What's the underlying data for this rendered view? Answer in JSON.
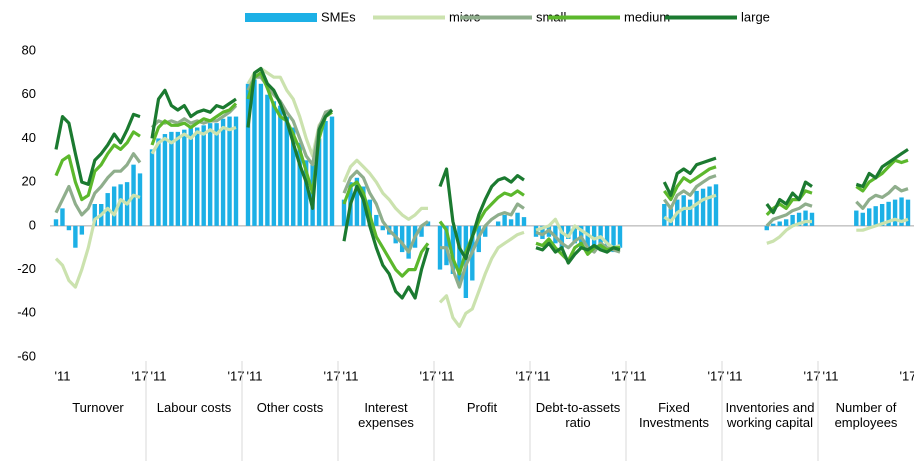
{
  "chart_data": {
    "type": "bar-line",
    "ylim": [
      -60,
      80
    ],
    "yticks": [
      -60,
      -40,
      -20,
      0,
      20,
      40,
      60,
      80
    ],
    "legend": [
      {
        "name": "SMEs",
        "color": "#1cb0e6",
        "type": "bar"
      },
      {
        "name": "micro",
        "color": "#cbe2ae",
        "type": "line"
      },
      {
        "name": "small",
        "color": "#8fae8c",
        "type": "line"
      },
      {
        "name": "medium",
        "color": "#5cb82c",
        "type": "line"
      },
      {
        "name": "large",
        "color": "#1b7a30",
        "type": "line"
      }
    ],
    "panels": [
      {
        "label": "Turnover",
        "categories": [
          null,
          "'11",
          null,
          null,
          null,
          null,
          null,
          null,
          null,
          null,
          null,
          null,
          null,
          "'17"
        ],
        "series": [
          {
            "values": [
              3,
              8,
              -2,
              -10,
              -4,
              0,
              10,
              10,
              15,
              18,
              19,
              20,
              28,
              24
            ]
          },
          {
            "values": [
              -15,
              -18,
              -25,
              -28,
              -20,
              -10,
              3,
              5,
              8,
              5,
              12,
              10,
              14,
              13
            ]
          },
          {
            "values": [
              6,
              12,
              18,
              10,
              5,
              8,
              15,
              18,
              22,
              25,
              25,
              28,
              33,
              29
            ]
          },
          {
            "values": [
              23,
              30,
              32,
              20,
              12,
              14,
              25,
              28,
              33,
              37,
              35,
              38,
              43,
              41
            ]
          },
          {
            "values": [
              35,
              50,
              47,
              33,
              20,
              19,
              30,
              33,
              37,
              42,
              38,
              44,
              51,
              50
            ]
          }
        ]
      },
      {
        "label": "Labour costs",
        "categories": [
          null,
          "'11",
          null,
          null,
          null,
          null,
          null,
          null,
          null,
          null,
          null,
          null,
          null,
          "'17"
        ],
        "series": [
          {
            "values": [
              35,
              40,
              42,
              43,
              43,
              44,
              45,
              45,
              46,
              47,
              47,
              49,
              50,
              50
            ]
          },
          {
            "values": [
              33,
              38,
              40,
              38,
              40,
              42,
              40,
              43,
              42,
              44,
              42,
              45,
              44,
              45
            ]
          },
          {
            "values": [
              45,
              48,
              47,
              48,
              47,
              49,
              47,
              48,
              47,
              48,
              48,
              50,
              52,
              55
            ]
          },
          {
            "values": [
              37,
              45,
              48,
              46,
              46,
              47,
              45,
              47,
              49,
              48,
              50,
              52,
              53,
              56
            ]
          },
          {
            "values": [
              40,
              58,
              62,
              55,
              53,
              55,
              50,
              52,
              53,
              52,
              55,
              54,
              56,
              58
            ]
          }
        ]
      },
      {
        "label": "Other costs",
        "categories": [
          null,
          "'11",
          null,
          null,
          null,
          null,
          null,
          null,
          null,
          null,
          null,
          null,
          null,
          "'17"
        ],
        "series": [
          {
            "values": [
              65,
              67,
              65,
              60,
              57,
              55,
              50,
              45,
              38,
              30,
              28,
              40,
              48,
              50
            ]
          },
          {
            "values": [
              65,
              70,
              72,
              70,
              68,
              68,
              62,
              58,
              50,
              40,
              32,
              46,
              50,
              52
            ]
          },
          {
            "values": [
              62,
              68,
              68,
              64,
              60,
              57,
              52,
              48,
              40,
              32,
              28,
              45,
              52,
              53
            ]
          },
          {
            "values": [
              58,
              68,
              70,
              63,
              55,
              50,
              48,
              42,
              35,
              25,
              15,
              40,
              50,
              52
            ]
          },
          {
            "values": [
              45,
              70,
              72,
              65,
              62,
              56,
              48,
              38,
              28,
              20,
              8,
              44,
              50,
              53
            ]
          }
        ]
      },
      {
        "label": "Interest expenses",
        "categories": [
          null,
          "'11",
          null,
          null,
          null,
          null,
          null,
          null,
          null,
          null,
          null,
          null,
          null,
          "'17"
        ],
        "series": [
          {
            "values": [
              12,
              20,
              22,
              18,
              12,
              5,
              -2,
              -4,
              -8,
              -12,
              -15,
              -10,
              -5,
              2
            ]
          },
          {
            "values": [
              20,
              27,
              30,
              27,
              24,
              20,
              15,
              12,
              8,
              5,
              3,
              5,
              8,
              8
            ]
          },
          {
            "values": [
              15,
              22,
              25,
              22,
              15,
              10,
              2,
              -2,
              -5,
              -8,
              -12,
              -5,
              0,
              2
            ]
          },
          {
            "values": [
              10,
              18,
              20,
              15,
              5,
              -5,
              -10,
              -15,
              -20,
              -23,
              -20,
              -20,
              -12,
              -8
            ]
          },
          {
            "values": [
              -7,
              10,
              18,
              12,
              0,
              -10,
              -18,
              -22,
              -30,
              -33,
              -28,
              -33,
              -20,
              -10
            ]
          }
        ]
      },
      {
        "label": "Profit",
        "categories": [
          null,
          "'11",
          null,
          null,
          null,
          null,
          null,
          null,
          null,
          null,
          null,
          null,
          null,
          "'17"
        ],
        "series": [
          {
            "values": [
              -20,
              -18,
              -22,
              -27,
              -33,
              -25,
              -12,
              -5,
              0,
              2,
              5,
              3,
              6,
              4
            ]
          },
          {
            "values": [
              -35,
              -32,
              -42,
              -46,
              -40,
              -38,
              -30,
              -22,
              -15,
              -10,
              -8,
              -6,
              -4,
              -3
            ]
          },
          {
            "values": [
              -10,
              -10,
              -20,
              -28,
              -18,
              -12,
              -5,
              0,
              3,
              5,
              6,
              5,
              10,
              8
            ]
          },
          {
            "values": [
              2,
              -2,
              -15,
              -22,
              -12,
              -5,
              2,
              7,
              10,
              13,
              15,
              14,
              16,
              14
            ]
          },
          {
            "values": [
              18,
              26,
              2,
              -10,
              -15,
              -5,
              5,
              12,
              18,
              21,
              22,
              20,
              23,
              21
            ]
          }
        ]
      },
      {
        "label": "Debt-to-assets ratio",
        "categories": [
          null,
          "'11",
          null,
          null,
          null,
          null,
          null,
          null,
          null,
          null,
          null,
          null,
          null,
          "'17"
        ],
        "series": [
          {
            "values": [
              -5,
              -6,
              -5,
              -8,
              -10,
              -6,
              -8,
              -10,
              -12,
              -10,
              -11,
              -9,
              -12,
              -10
            ]
          },
          {
            "values": [
              -2,
              -1,
              0,
              3,
              -3,
              -5,
              0,
              -2,
              -4,
              -6,
              -5,
              -8,
              -10,
              -9
            ]
          },
          {
            "values": [
              -3,
              -4,
              -2,
              -5,
              -8,
              -10,
              -7,
              -5,
              -10,
              -12,
              -8,
              -10,
              -11,
              -12
            ]
          },
          {
            "values": [
              -8,
              -9,
              -6,
              -10,
              -13,
              -16,
              -10,
              -8,
              -13,
              -10,
              -9,
              -11,
              -10,
              -10
            ]
          },
          {
            "values": [
              -10,
              -11,
              -8,
              -12,
              -10,
              -17,
              -13,
              -10,
              -11,
              -9,
              -11,
              -12,
              -10,
              -11
            ]
          }
        ]
      },
      {
        "label": "Fixed Investments",
        "categories": [
          null,
          "'11",
          null,
          null,
          null,
          null,
          null,
          null,
          null,
          null,
          null,
          null,
          null,
          "'17"
        ],
        "series": [
          {
            "values": [
              null,
              null,
              null,
              null,
              null,
              10,
              8,
              12,
              14,
              12,
              16,
              17,
              18,
              19
            ]
          },
          {
            "values": [
              null,
              null,
              null,
              null,
              null,
              4,
              2,
              6,
              8,
              8,
              10,
              12,
              13,
              14
            ]
          },
          {
            "values": [
              null,
              null,
              null,
              null,
              null,
              12,
              8,
              14,
              16,
              14,
              18,
              20,
              22,
              23
            ]
          },
          {
            "values": [
              null,
              null,
              null,
              null,
              null,
              16,
              12,
              18,
              22,
              20,
              22,
              24,
              26,
              27
            ]
          },
          {
            "values": [
              null,
              null,
              null,
              null,
              null,
              20,
              14,
              24,
              26,
              24,
              28,
              29,
              30,
              31
            ]
          }
        ]
      },
      {
        "label": "Inventories and working capital",
        "categories": [
          null,
          "'11",
          null,
          null,
          null,
          null,
          null,
          null,
          null,
          null,
          null,
          null,
          null,
          "'17"
        ],
        "series": [
          {
            "values": [
              null,
              null,
              null,
              null,
              null,
              null,
              -2,
              1,
              2,
              3,
              5,
              6,
              7,
              6
            ]
          },
          {
            "values": [
              null,
              null,
              null,
              null,
              null,
              null,
              -8,
              -7,
              -5,
              -2,
              0,
              1,
              2,
              2
            ]
          },
          {
            "values": [
              null,
              null,
              null,
              null,
              null,
              null,
              0,
              3,
              4,
              5,
              7,
              8,
              10,
              9
            ]
          },
          {
            "values": [
              null,
              null,
              null,
              null,
              null,
              null,
              5,
              8,
              10,
              8,
              12,
              12,
              16,
              15
            ]
          },
          {
            "values": [
              null,
              null,
              null,
              null,
              null,
              null,
              10,
              6,
              12,
              10,
              15,
              12,
              20,
              18
            ]
          }
        ]
      },
      {
        "label": "Number of employees",
        "categories": [
          null,
          "'11",
          null,
          null,
          null,
          null,
          null,
          null,
          null,
          null,
          null,
          null,
          null,
          "'17"
        ],
        "series": [
          {
            "values": [
              null,
              null,
              null,
              null,
              null,
              7,
              6,
              8,
              9,
              10,
              11,
              12,
              13,
              12
            ]
          },
          {
            "values": [
              null,
              null,
              null,
              null,
              null,
              -2,
              -2,
              -1,
              0,
              1,
              2,
              3,
              2,
              3
            ]
          },
          {
            "values": [
              null,
              null,
              null,
              null,
              null,
              11,
              8,
              12,
              14,
              13,
              15,
              18,
              16,
              17
            ]
          },
          {
            "values": [
              null,
              null,
              null,
              null,
              null,
              18,
              16,
              20,
              22,
              24,
              27,
              30,
              29,
              30
            ]
          },
          {
            "values": [
              null,
              null,
              null,
              null,
              null,
              19,
              18,
              24,
              22,
              27,
              29,
              31,
              33,
              35
            ]
          }
        ]
      }
    ]
  }
}
